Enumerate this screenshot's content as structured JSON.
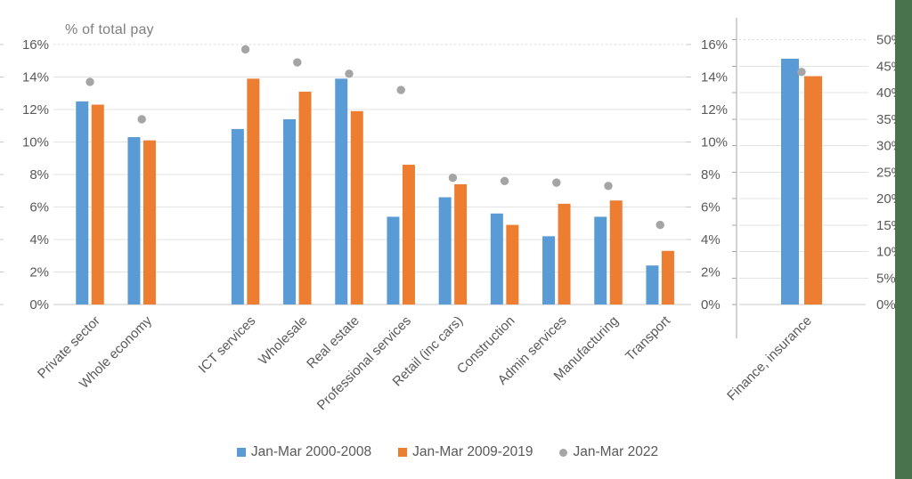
{
  "title": "% of total pay",
  "legend": [
    {
      "label": "Jan-Mar 2000-2008",
      "marker": "square-icon",
      "color": "#5b9bd5"
    },
    {
      "label": "Jan-Mar 2009-2019",
      "marker": "square-icon",
      "color": "#ed7d31"
    },
    {
      "label": "Jan-Mar 2022",
      "marker": "circle-icon",
      "color": "#a5a5a5"
    }
  ],
  "page": {
    "side_strip_color": "#48734d"
  },
  "chart_data": {
    "type": "bar",
    "title": "% of total pay",
    "grid": true,
    "legend_position": "bottom",
    "category_label_rotation_deg": 45,
    "series_names": [
      "Jan-Mar 2000-2008",
      "Jan-Mar 2009-2019",
      "Jan-Mar 2022"
    ],
    "colors": {
      "bar1": "#5b9bd5",
      "bar2": "#ed7d31",
      "point": "#a5a5a5"
    },
    "panels": [
      {
        "name": "main",
        "axis_side": "left",
        "axis_title": "% of total pay",
        "ylim": [
          0,
          16
        ],
        "tick_step": 2,
        "tick_labels": [
          "0%",
          "2%",
          "4%",
          "6%",
          "8%",
          "10%",
          "12%",
          "14%",
          "16%"
        ],
        "duplicate_right_tick_labels": [
          "0%",
          "2%",
          "4%",
          "6%",
          "8%",
          "10%",
          "12%",
          "14%",
          "16%"
        ],
        "group_gap_after_category_index": 1,
        "categories": [
          "Private sector",
          "Whole economy",
          "ICT services",
          "Wholesale",
          "Real estate",
          "Professional services",
          "Retail (inc cars)",
          "Construction",
          "Admin services",
          "Manufacturing",
          "Transport"
        ],
        "series": [
          {
            "name": "Jan-Mar 2000-2008",
            "type": "bar",
            "color": "#5b9bd5",
            "values": [
              12.5,
              10.3,
              10.8,
              11.4,
              13.9,
              5.4,
              6.6,
              5.6,
              4.2,
              5.4,
              2.4
            ]
          },
          {
            "name": "Jan-Mar 2009-2019",
            "type": "bar",
            "color": "#ed7d31",
            "values": [
              12.3,
              10.1,
              13.9,
              13.1,
              11.9,
              8.6,
              7.4,
              4.9,
              6.2,
              6.4,
              3.3
            ]
          },
          {
            "name": "Jan-Mar 2022",
            "type": "point",
            "color": "#a5a5a5",
            "values": [
              13.7,
              11.4,
              15.7,
              14.9,
              14.2,
              13.2,
              7.8,
              7.6,
              7.5,
              7.3,
              4.9
            ]
          }
        ]
      },
      {
        "name": "finance",
        "axis_side": "right",
        "ylim": [
          0,
          50
        ],
        "tick_step": 5,
        "tick_labels": [
          "0%",
          "5%",
          "10%",
          "15%",
          "20%",
          "25%",
          "30%",
          "35%",
          "40%",
          "45%",
          "50%"
        ],
        "categories": [
          "Finance, insurance"
        ],
        "series": [
          {
            "name": "Jan-Mar 2000-2008",
            "type": "bar",
            "color": "#5b9bd5",
            "values": [
              46.4
            ]
          },
          {
            "name": "Jan-Mar 2009-2019",
            "type": "bar",
            "color": "#ed7d31",
            "values": [
              43.1
            ]
          },
          {
            "name": "Jan-Mar 2022",
            "type": "point",
            "color": "#a5a5a5",
            "values": [
              43.9
            ]
          }
        ]
      }
    ]
  }
}
